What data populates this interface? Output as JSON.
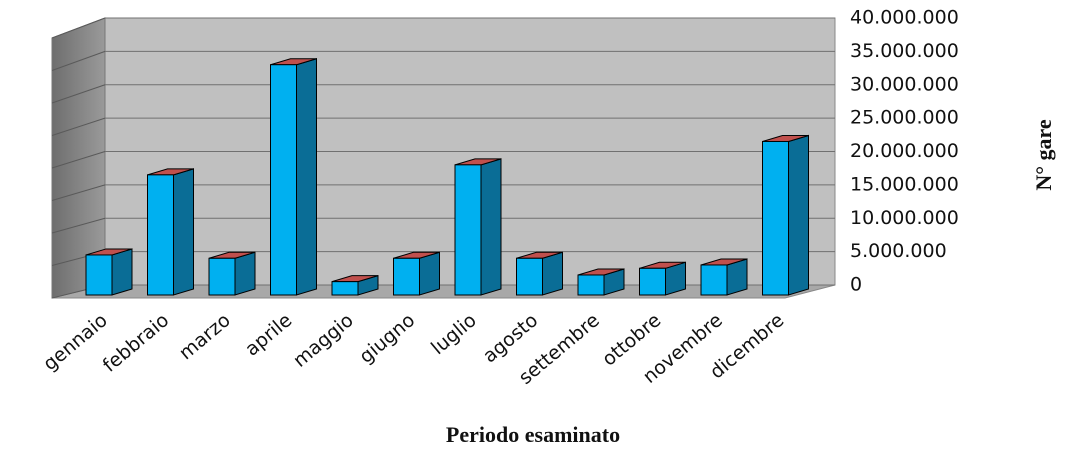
{
  "chart_data": {
    "type": "bar3d",
    "x_label": "Periodo esaminato",
    "y_label": "N° gare",
    "categories": [
      "gennaio",
      "febbraio",
      "marzo",
      "aprile",
      "maggio",
      "giugno",
      "luglio",
      "agosto",
      "settembre",
      "ottobre",
      "novembre",
      "dicembre"
    ],
    "values": [
      6000000,
      18000000,
      5500000,
      34500000,
      2000000,
      5500000,
      19500000,
      5500000,
      3000000,
      4000000,
      4500000,
      23000000
    ],
    "color": "#00b0f0",
    "ylim": [
      0,
      40000000
    ],
    "yticks": [
      0,
      {
        "value": 5000000,
        "label": "5.000.000"
      },
      {
        "value": 10000000,
        "label": "10.000.000"
      },
      {
        "value": 15000000,
        "label": "15.000.000"
      },
      {
        "value": 20000000,
        "label": "20.000.000"
      },
      {
        "value": 25000000,
        "label": "25.000.000"
      },
      {
        "value": 30000000,
        "label": "30.000.000"
      },
      {
        "value": 35000000,
        "label": "35.000.000"
      },
      {
        "value": 40000000,
        "label": "40.000.000"
      }
    ],
    "grid": true
  }
}
